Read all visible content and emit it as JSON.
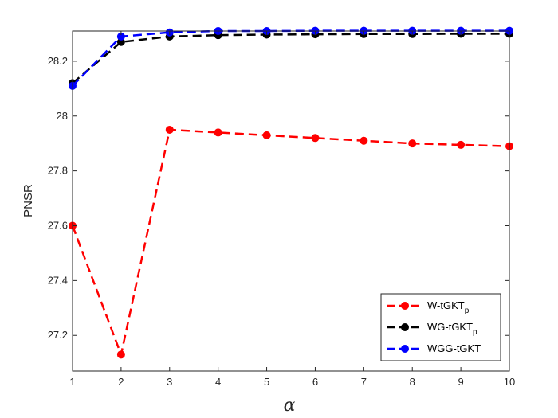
{
  "chart_data": {
    "type": "line",
    "title": "",
    "xlabel": "α",
    "ylabel": "PNSR",
    "x": [
      1,
      2,
      3,
      4,
      5,
      6,
      7,
      8,
      9,
      10
    ],
    "xlim": [
      1,
      10
    ],
    "ylim": [
      27.07,
      28.31
    ],
    "xticks": [
      1,
      2,
      3,
      4,
      5,
      6,
      7,
      8,
      9,
      10
    ],
    "yticks": [
      27.2,
      27.4,
      27.6,
      27.8,
      28,
      28.2
    ],
    "ytick_labels": [
      "27.2",
      "27.4",
      "27.6",
      "27.8",
      "28",
      "28.2"
    ],
    "grid": false,
    "legend_position": "bottom-right",
    "series": [
      {
        "name": "W-tGKT",
        "name_sub": "p",
        "color": "#ff0000",
        "values": [
          27.6,
          27.13,
          27.95,
          27.94,
          27.93,
          27.92,
          27.91,
          27.9,
          27.895,
          27.89
        ]
      },
      {
        "name": "WG-tGKT",
        "name_sub": "p",
        "color": "#000000",
        "values": [
          28.12,
          28.27,
          28.29,
          28.295,
          28.297,
          28.298,
          28.299,
          28.299,
          28.3,
          28.3
        ]
      },
      {
        "name": "WGG-tGKT",
        "name_sub": "",
        "color": "#0000ff",
        "values": [
          28.11,
          28.29,
          28.305,
          28.31,
          28.31,
          28.311,
          28.311,
          28.311,
          28.311,
          28.311
        ]
      }
    ]
  }
}
